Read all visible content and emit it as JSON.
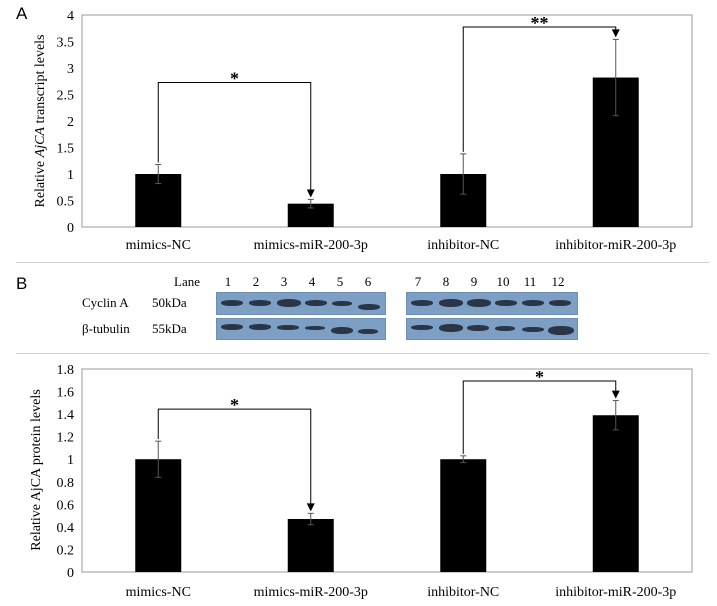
{
  "panel_a_label": "A",
  "panel_b_label": "B",
  "western_blot": {
    "lane_header": "Lane",
    "lanes": [
      "1",
      "2",
      "3",
      "4",
      "5",
      "6",
      "7",
      "8",
      "9",
      "10",
      "11",
      "12"
    ],
    "rows": [
      {
        "protein": "Cyclin A",
        "size": "50kDa"
      },
      {
        "protein": "β-tubulin",
        "size": "55kDa"
      }
    ]
  },
  "chart_data": [
    {
      "type": "bar",
      "categories": [
        "mimics-NC",
        "mimics-miR-200-3p",
        "inhibitor-NC",
        "inhibitor-miR-200-3p"
      ],
      "values": [
        1.0,
        0.44,
        1.0,
        2.82
      ],
      "errors": [
        0.18,
        0.08,
        0.38,
        0.72
      ],
      "ylabel_prefix": "Relative ",
      "ylabel_italic": "AjCA",
      "ylabel_suffix": " transcript levels",
      "ylim": [
        0,
        4
      ],
      "yticks": [
        "0",
        "0.5",
        "1",
        "1.5",
        "2",
        "2.5",
        "3",
        "3.5",
        "4"
      ],
      "significance": [
        {
          "from": 0,
          "to": 1,
          "label": "*"
        },
        {
          "from": 2,
          "to": 3,
          "label": "**"
        }
      ]
    },
    {
      "type": "bar",
      "categories": [
        "mimics-NC",
        "mimics-miR-200-3p",
        "inhibitor-NC",
        "inhibitor-miR-200-3p"
      ],
      "values": [
        1.0,
        0.47,
        1.0,
        1.39
      ],
      "errors": [
        0.16,
        0.05,
        0.03,
        0.13
      ],
      "ylabel": "Relative AjCA protein levels",
      "ylim": [
        0,
        1.8
      ],
      "yticks": [
        "0",
        "0.2",
        "0.4",
        "0.6",
        "0.8",
        "1",
        "1.2",
        "1.4",
        "1.6",
        "1.8"
      ],
      "significance": [
        {
          "from": 0,
          "to": 1,
          "label": "*"
        },
        {
          "from": 2,
          "to": 3,
          "label": "*"
        }
      ]
    }
  ]
}
